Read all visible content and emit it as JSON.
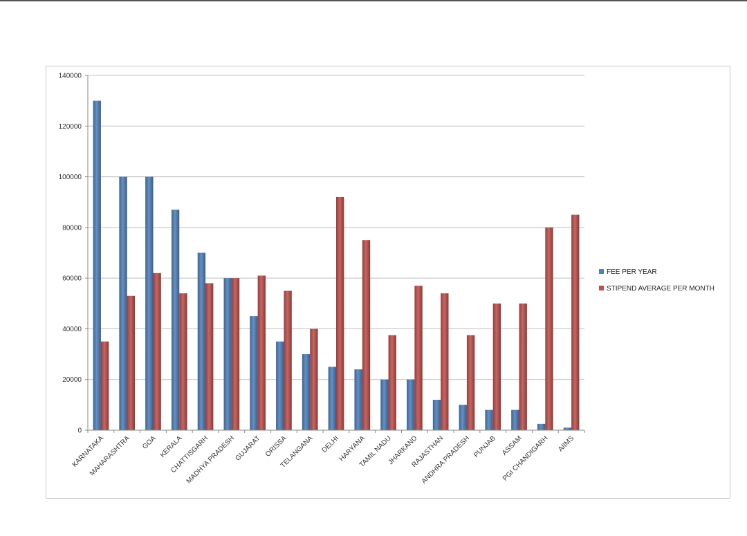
{
  "chart_data": {
    "type": "bar",
    "categories": [
      "KARNATAKA",
      "MAHARASHTRA",
      "GOA",
      "KERALA",
      "CHATTISGARH",
      "MADHYA PRADESH",
      "GUJARAT",
      "ORISSA",
      "TELANGANA",
      "DELHI",
      "HARYANA",
      "TAMIL NADU",
      "JHARKAND",
      "RAJASTHAN",
      "ANDHRA PRADESH",
      "PUNJAB",
      "ASSAM",
      "PGI CHANDIGARH",
      "AIIMS"
    ],
    "series": [
      {
        "name": "FEE PER YEAR",
        "color": "#4f81bd",
        "values": [
          130000,
          100000,
          100000,
          87000,
          70000,
          60000,
          45000,
          35000,
          30000,
          25000,
          24000,
          20000,
          20000,
          12000,
          10000,
          8000,
          8000,
          2500,
          1000
        ]
      },
      {
        "name": "STIPEND AVERAGE PER MONTH",
        "color": "#c0504d",
        "values": [
          35000,
          53000,
          62000,
          54000,
          58000,
          60000,
          61000,
          55000,
          40000,
          92000,
          75000,
          37500,
          57000,
          54000,
          37500,
          50000,
          50000,
          80000,
          85000
        ]
      }
    ],
    "yticks": [
      0,
      20000,
      40000,
      60000,
      80000,
      100000,
      120000,
      140000
    ],
    "ylim": [
      0,
      140000
    ],
    "grid": true,
    "legend": "right",
    "title": "",
    "xlabel": "",
    "ylabel": ""
  }
}
